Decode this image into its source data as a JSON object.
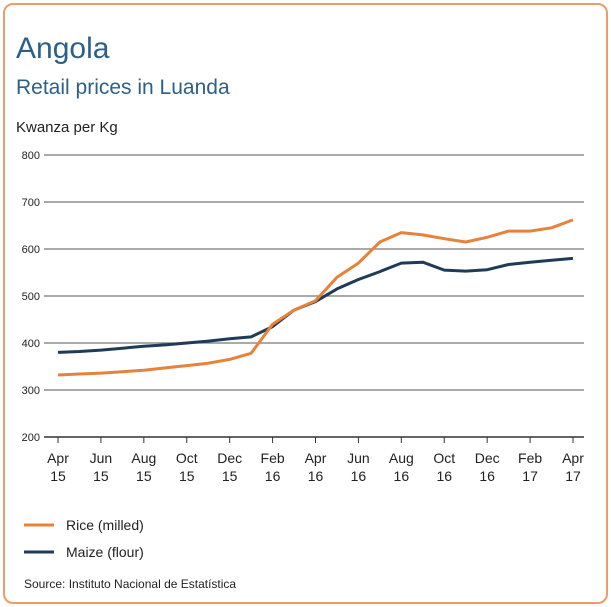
{
  "chart_data": {
    "type": "line",
    "title": "Angola",
    "subtitle": "Retail prices in Luanda",
    "y_label": "Kwanza per Kg",
    "source": "Source: Instituto Nacional de Estatística",
    "categories": [
      "Apr\n15",
      null,
      "Jun\n15",
      null,
      "Aug\n15",
      null,
      "Oct\n15",
      null,
      "Dec\n15",
      null,
      "Feb\n16",
      null,
      "Apr\n16",
      null,
      "Jun\n16",
      null,
      "Aug\n16",
      null,
      "Oct\n16",
      null,
      "Dec\n16",
      null,
      "Feb\n17",
      null,
      "Apr\n17"
    ],
    "series": [
      {
        "name": "Rice (milled)",
        "color": "#e8813a",
        "values": [
          332,
          334,
          336,
          339,
          342,
          347,
          352,
          357,
          365,
          378,
          440,
          470,
          490,
          540,
          570,
          615,
          635,
          630,
          622,
          615,
          625,
          638,
          638,
          645,
          662
        ]
      },
      {
        "name": "Maize (flour)",
        "color": "#1f3b57",
        "values": [
          380,
          382,
          385,
          389,
          393,
          396,
          400,
          404,
          409,
          413,
          435,
          470,
          488,
          515,
          535,
          552,
          570,
          572,
          555,
          553,
          556,
          567,
          572,
          576,
          580
        ]
      }
    ],
    "ylim": [
      200,
      800
    ],
    "yticks": [
      200,
      300,
      400,
      500,
      600,
      700,
      800
    ],
    "grid": true
  }
}
